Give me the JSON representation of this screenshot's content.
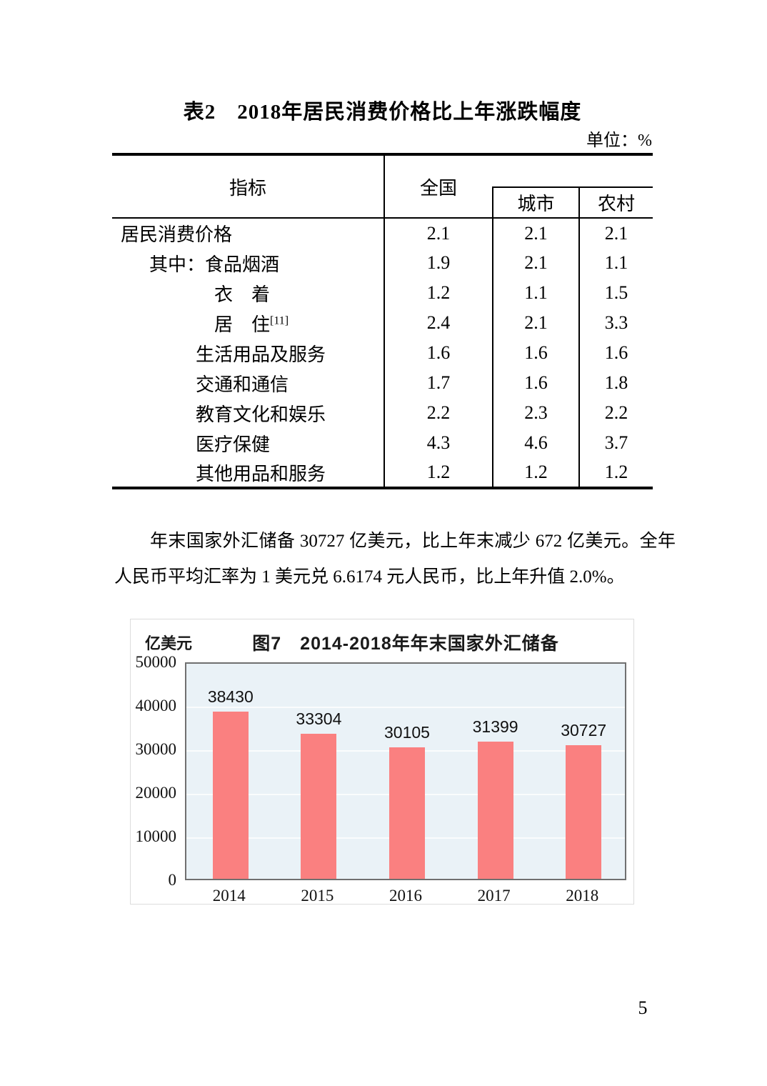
{
  "page": {
    "number": "5"
  },
  "table_section": {
    "title": "表2　2018年居民消费价格比上年涨跌幅度",
    "unit_note": "单位：%",
    "header": {
      "indicator": "指标",
      "national": "全国",
      "urban": "城市",
      "rural": "农村"
    },
    "rows": [
      {
        "label": "居民消费价格",
        "sup": "",
        "level": 0,
        "national": "2.1",
        "urban": "2.1",
        "rural": "2.1"
      },
      {
        "label": "其中：食品烟酒",
        "sup": "",
        "level": 1,
        "national": "1.9",
        "urban": "2.1",
        "rural": "1.1"
      },
      {
        "label": "衣　着",
        "sup": "",
        "level": 2,
        "national": "1.2",
        "urban": "1.1",
        "rural": "1.5"
      },
      {
        "label": "居　住",
        "sup": "[11]",
        "level": 2,
        "national": "2.4",
        "urban": "2.1",
        "rural": "3.3"
      },
      {
        "label": "生活用品及服务",
        "sup": "",
        "level": 3,
        "national": "1.6",
        "urban": "1.6",
        "rural": "1.6"
      },
      {
        "label": "交通和通信",
        "sup": "",
        "level": 3,
        "national": "1.7",
        "urban": "1.6",
        "rural": "1.8"
      },
      {
        "label": "教育文化和娱乐",
        "sup": "",
        "level": 3,
        "national": "2.2",
        "urban": "2.3",
        "rural": "2.2"
      },
      {
        "label": "医疗保健",
        "sup": "",
        "level": 3,
        "national": "4.3",
        "urban": "4.6",
        "rural": "3.7"
      },
      {
        "label": "其他用品和服务",
        "sup": "",
        "level": 3,
        "national": "1.2",
        "urban": "1.2",
        "rural": "1.2"
      }
    ]
  },
  "paragraph": "年末国家外汇储备 30727 亿美元，比上年末减少 672 亿美元。全年人民币平均汇率为 1 美元兑 6.6174 元人民币，比上年升值 2.0%。",
  "chart_data": {
    "type": "bar",
    "title": "图7　2014-2018年年末国家外汇储备",
    "ylabel": "亿美元",
    "categories": [
      "2014",
      "2015",
      "2016",
      "2017",
      "2018"
    ],
    "values": [
      38430,
      33304,
      30105,
      31399,
      30727
    ],
    "ylim": [
      0,
      50000
    ],
    "yticks": [
      0,
      10000,
      20000,
      30000,
      40000,
      50000
    ],
    "grid": true,
    "legend": "none",
    "bar_color": "#fa8080",
    "plot_bg": "#eaf2f7"
  }
}
